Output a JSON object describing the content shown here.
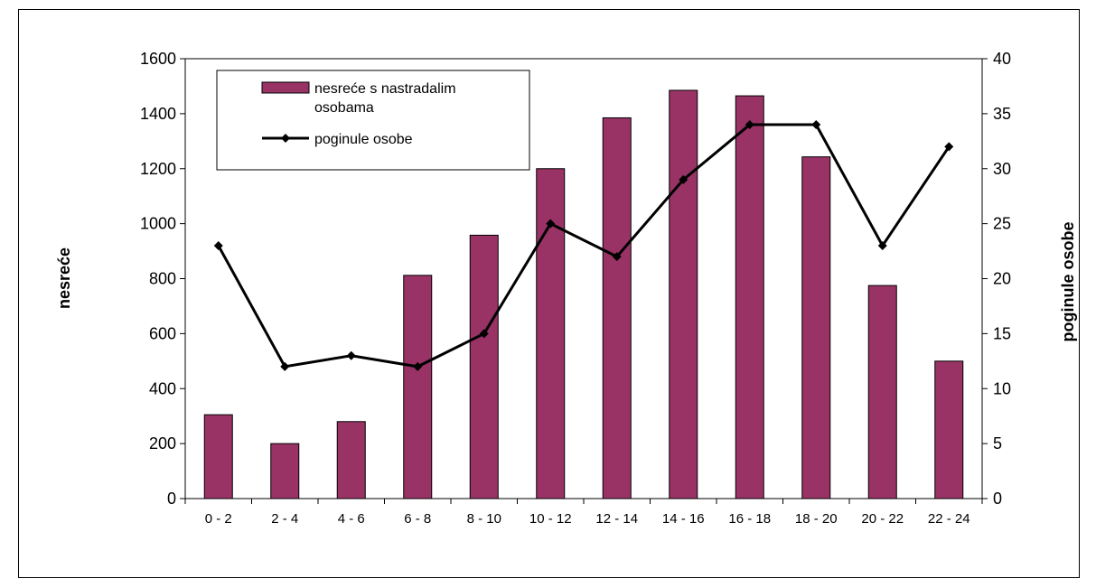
{
  "chart_data": {
    "type": "bar",
    "categories": [
      "0 - 2",
      "2 - 4",
      "4 - 6",
      "6 - 8",
      "8 - 10",
      "10 - 12",
      "12 - 14",
      "14 - 16",
      "16 - 18",
      "18 - 20",
      "20 - 22",
      "22 - 24"
    ],
    "series": [
      {
        "name": "nesreće s nastradalim osobama",
        "type": "bar",
        "axis": "left",
        "color": "#993366",
        "values": [
          305,
          200,
          280,
          812,
          958,
          1200,
          1385,
          1485,
          1465,
          1243,
          775,
          500
        ]
      },
      {
        "name": "poginule osobe",
        "type": "line",
        "axis": "right",
        "color": "#000000",
        "values": [
          23,
          12,
          13,
          12,
          15,
          25,
          22,
          29,
          34,
          34,
          23,
          32
        ]
      }
    ],
    "ylabel": "nesreće",
    "y2label": "poginule osobe",
    "ylim": [
      0,
      1600
    ],
    "y2lim": [
      0,
      40
    ],
    "yticks": [
      "0",
      "200",
      "400",
      "600",
      "800",
      "1000",
      "1200",
      "1400",
      "1600"
    ],
    "y2ticks": [
      "0",
      "5",
      "10",
      "15",
      "20",
      "25",
      "30",
      "35",
      "40"
    ],
    "legend": {
      "position": "top-left",
      "bar_label_line1": "nesreće s nastradalim",
      "bar_label_line2": "osobama",
      "line_label": "poginule osobe"
    },
    "grid": false
  }
}
